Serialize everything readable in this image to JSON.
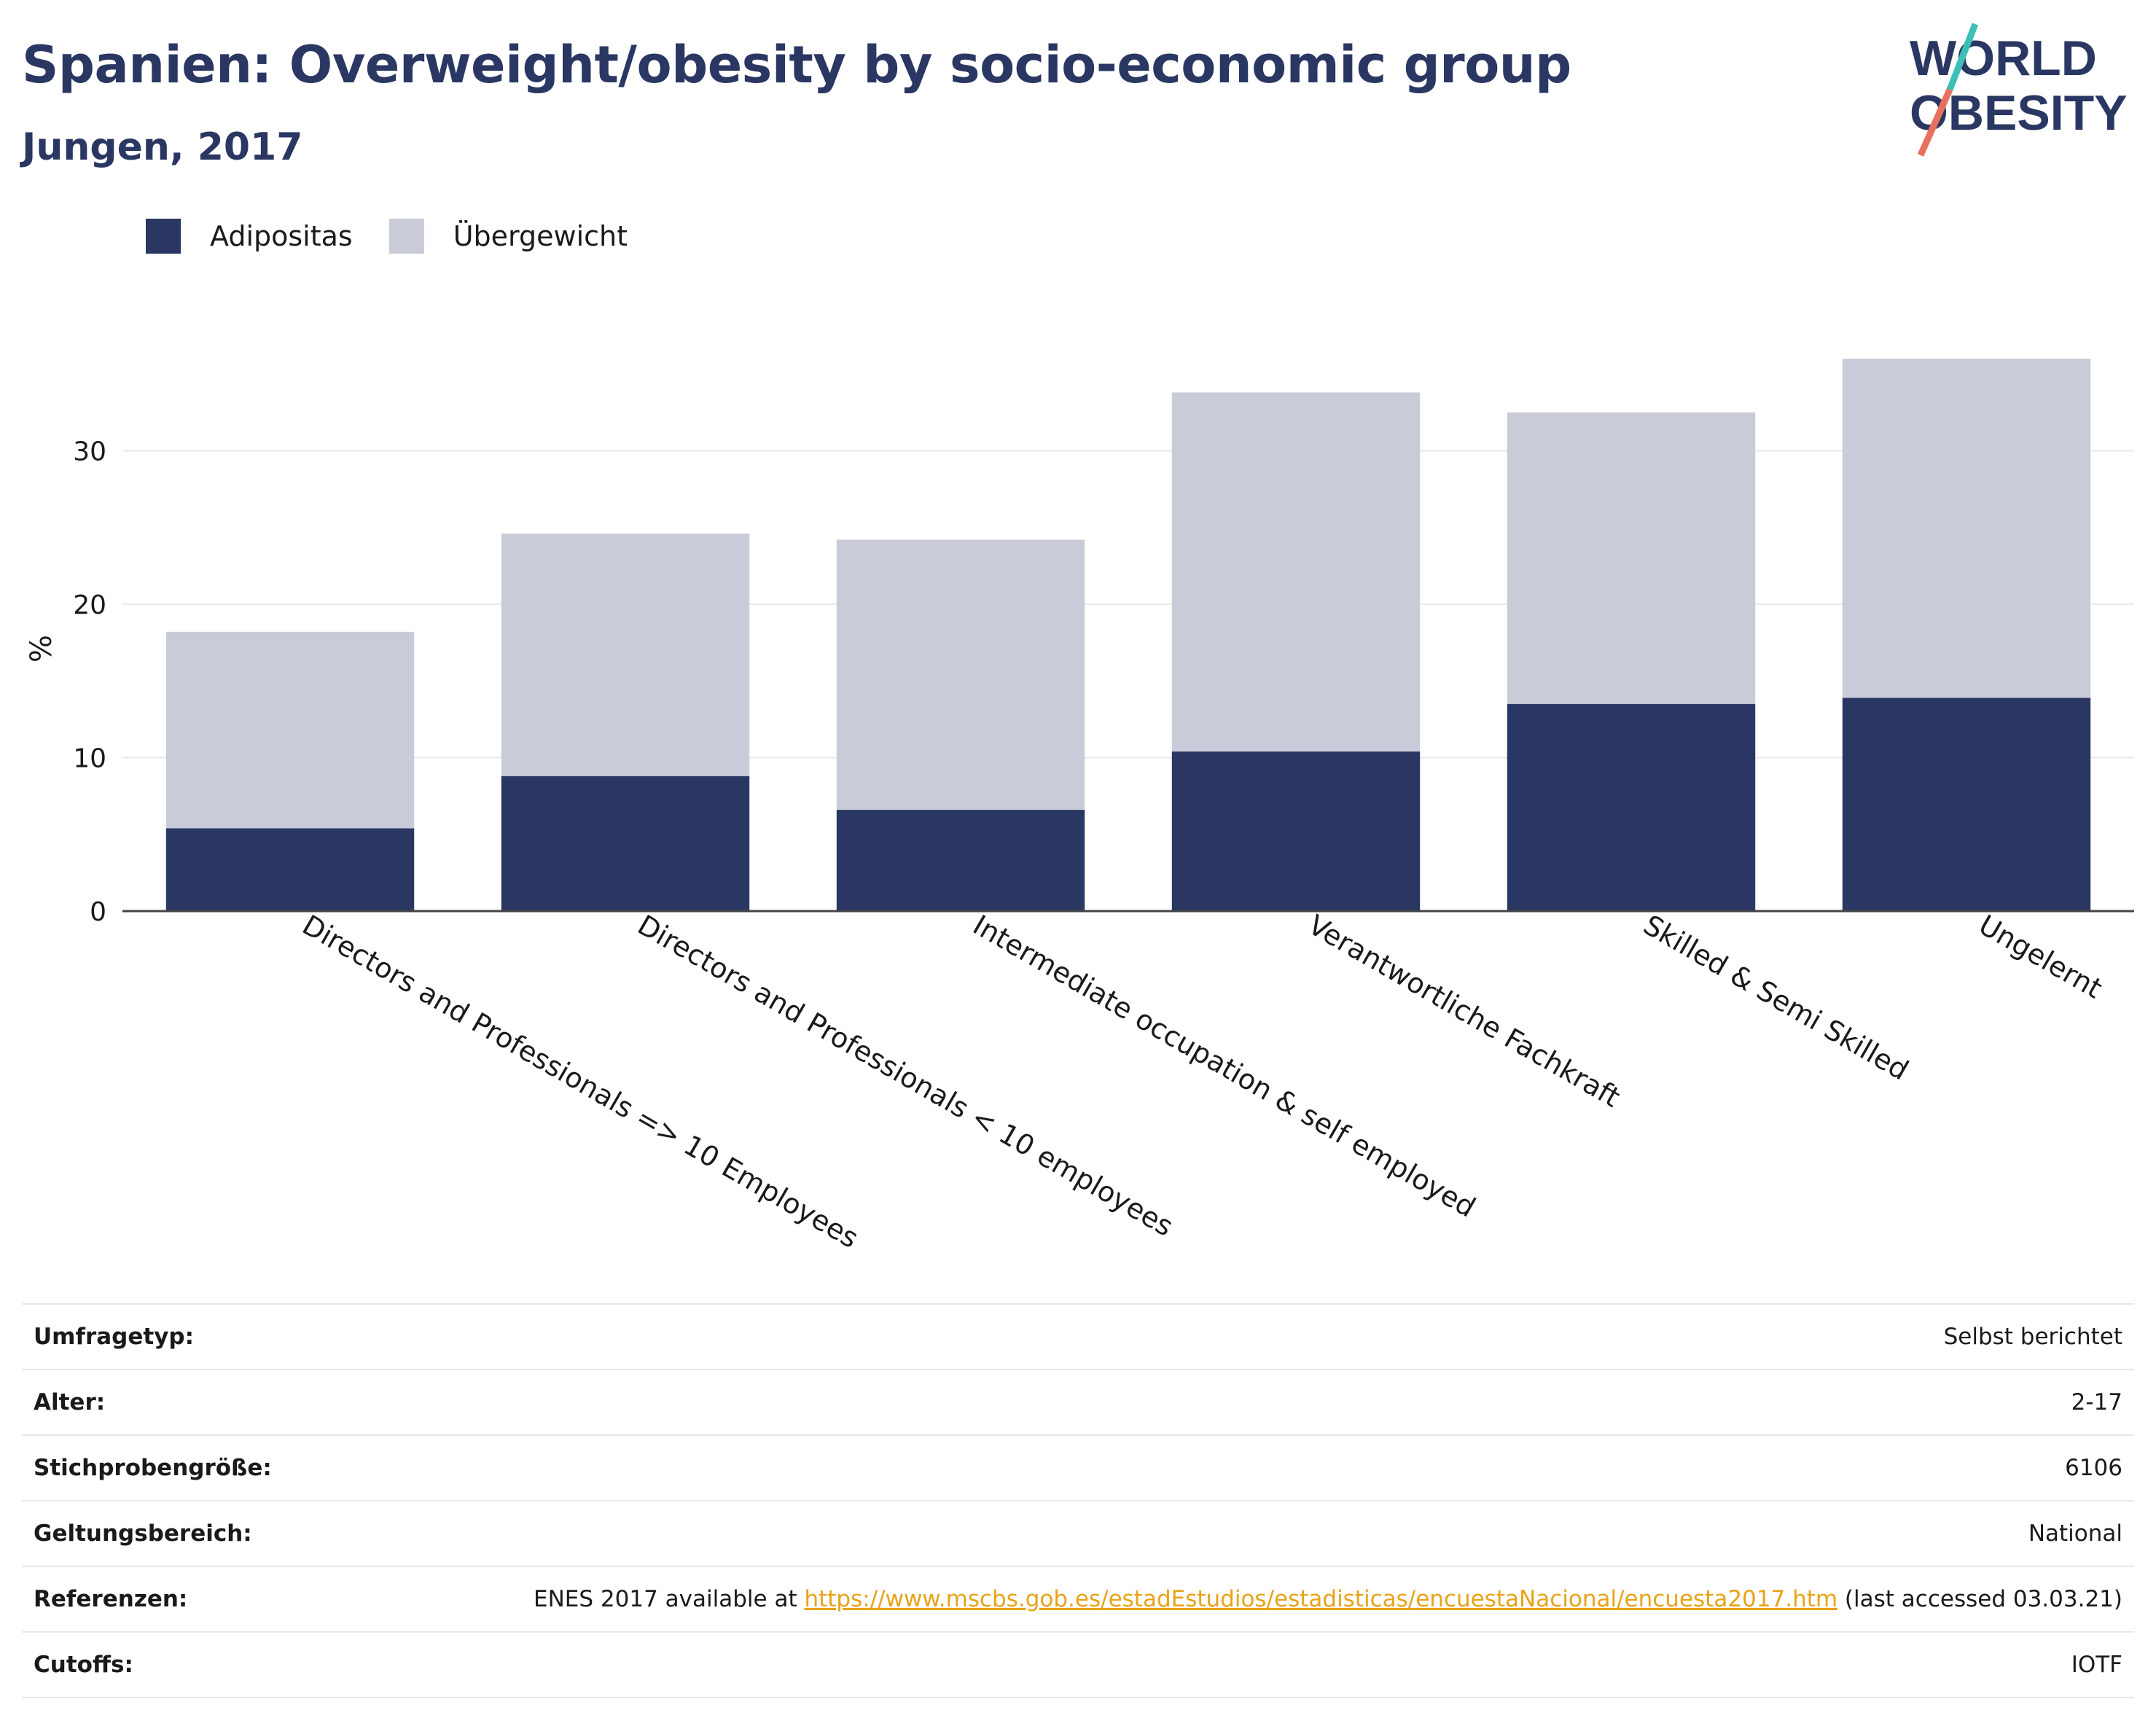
{
  "title": "Spanien: Overweight/obesity by socio-economic group",
  "subtitle": "Jungen, 2017",
  "logo": {
    "line1": "WORLD",
    "line2": "OBESITY"
  },
  "colors": {
    "adipositas": "#2a3763",
    "uebergewicht": "#cacbd8",
    "link": "#e8a317",
    "logo_teal": "#3dbfb8",
    "logo_coral": "#e8705e"
  },
  "chart_data": {
    "type": "bar",
    "stacked": true,
    "categories": [
      "Directors and Professionals => 10 Employees",
      "Directors and Professionals < 10 employees",
      "Intermediate occupation & self employed",
      "Verantwortliche Fachkraft",
      "Skilled & Semi Skilled",
      "Ungelernt"
    ],
    "series": [
      {
        "name": "Adipositas",
        "values": [
          5.4,
          8.8,
          6.6,
          10.4,
          13.5,
          13.9
        ]
      },
      {
        "name": "Übergewicht",
        "values": [
          12.8,
          15.8,
          17.6,
          23.4,
          19.0,
          22.1
        ]
      }
    ],
    "xlabel": "",
    "ylabel": "%",
    "yticks": [
      0,
      10,
      20,
      30
    ],
    "ylim": [
      0,
      38
    ],
    "grid": true,
    "legend_position": "top-left"
  },
  "info": [
    {
      "key": "Umfragetyp:",
      "value": "Selbst berichtet"
    },
    {
      "key": "Alter:",
      "value": "2-17"
    },
    {
      "key": "Stichprobengröße:",
      "value": "6106"
    },
    {
      "key": "Geltungsbereich:",
      "value": "National"
    },
    {
      "key": "Referenzen:",
      "value_prefix": "ENES 2017 available at ",
      "link": "https://www.mscbs.gob.es/estadEstudios/estadisticas/encuestaNacional/encuesta2017.htm",
      "value_suffix": " (last accessed 03.03.21)"
    },
    {
      "key": "Cutoffs:",
      "value": "IOTF"
    }
  ]
}
